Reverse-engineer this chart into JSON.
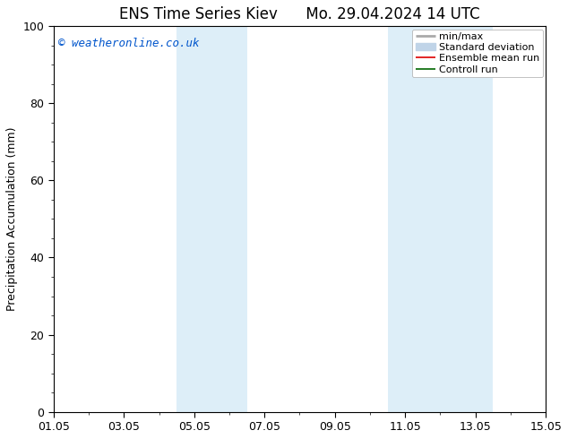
{
  "title": "ENS Time Series Kiev",
  "title2": "Mo. 29.04.2024 14 UTC",
  "ylabel": "Precipitation Accumulation (mm)",
  "watermark": "© weatheronline.co.uk",
  "watermark_color": "#0055cc",
  "ylim": [
    0,
    100
  ],
  "yticks": [
    0,
    20,
    40,
    60,
    80,
    100
  ],
  "x_start_day": 0,
  "x_end_day": 14,
  "xtick_labels": [
    "01.05",
    "03.05",
    "05.05",
    "07.05",
    "09.05",
    "11.05",
    "13.05",
    "15.05"
  ],
  "xtick_positions_days": [
    0,
    2,
    4,
    6,
    8,
    10,
    12,
    14
  ],
  "shaded_bands": [
    {
      "start_day": 3.5,
      "end_day": 5.5
    },
    {
      "start_day": 9.5,
      "end_day": 12.5
    }
  ],
  "shade_color": "#ddeef8",
  "background_color": "#ffffff",
  "legend_items": [
    {
      "label": "min/max",
      "color": "#aaaaaa",
      "lw": 2.0,
      "style": "line"
    },
    {
      "label": "Standard deviation",
      "color": "#c0d4e8",
      "lw": 6,
      "style": "patch"
    },
    {
      "label": "Ensemble mean run",
      "color": "#dd0000",
      "lw": 1.2,
      "style": "line"
    },
    {
      "label": "Controll run",
      "color": "#006600",
      "lw": 1.2,
      "style": "line"
    }
  ],
  "title_fontsize": 12,
  "axis_label_fontsize": 9,
  "tick_fontsize": 9,
  "legend_fontsize": 8,
  "watermark_fontsize": 9
}
